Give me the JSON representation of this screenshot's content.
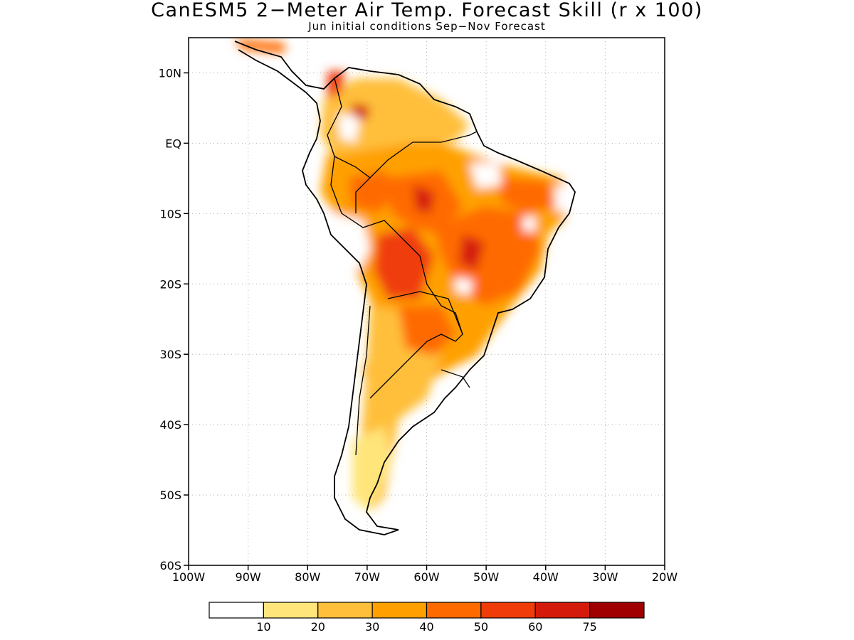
{
  "title": "CanESM5 2−Meter Air Temp. Forecast Skill (r x 100)",
  "subtitle": "Jun initial conditions  Sep−Nov Forecast",
  "map": {
    "lon_range": [
      -100,
      -20
    ],
    "lat_range": [
      -60,
      15
    ],
    "lat_labels": [
      "10N",
      "EQ",
      "10S",
      "20S",
      "30S",
      "40S",
      "50S",
      "60S"
    ],
    "lat_values": [
      10,
      0,
      -10,
      -20,
      -30,
      -40,
      -50,
      -60
    ],
    "lon_labels": [
      "100W",
      "90W",
      "80W",
      "70W",
      "60W",
      "50W",
      "40W",
      "30W",
      "20W"
    ],
    "lon_values": [
      -100,
      -90,
      -80,
      -70,
      -60,
      -50,
      -40,
      -30,
      -20
    ],
    "grid": "dotted",
    "coastline_color": "#000000"
  },
  "colorbar": {
    "colors": [
      "#ffffff",
      "#ffe57a",
      "#ffbf3a",
      "#ffa000",
      "#ff6a00",
      "#f03c08",
      "#d41a0a",
      "#a00000"
    ],
    "labels": [
      "10",
      "20",
      "30",
      "40",
      "50",
      "60",
      "75"
    ]
  },
  "icons": {
    "land_mask": "south-america-continent"
  }
}
